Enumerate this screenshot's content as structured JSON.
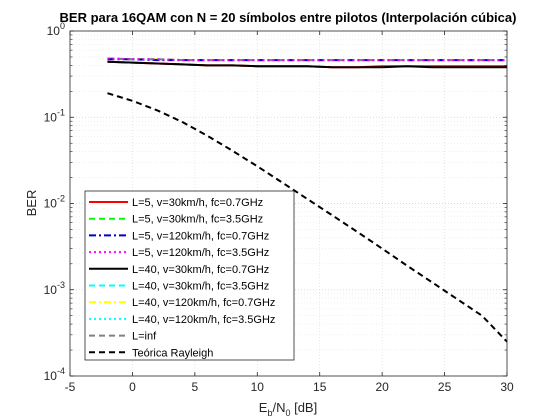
{
  "chart_data": {
    "type": "line",
    "title": "BER para 16QAM con N = 20 símbolos entre pilotos (Interpolación cúbica)",
    "xlabel": "E_b/N_0 [dB]",
    "xlabel_parts": {
      "base": "E",
      "sub1": "b",
      "mid": "/N",
      "sub2": "0",
      "tail": " [dB]"
    },
    "ylabel": "BER",
    "xlim": [
      -5,
      30
    ],
    "ylim": [
      0.0001,
      1
    ],
    "yscale": "log",
    "grid": true,
    "legend_position": "bottom-left",
    "x_ticks": [
      -5,
      0,
      5,
      10,
      15,
      20,
      25,
      30
    ],
    "x_tick_labels": [
      "-5",
      "0",
      "5",
      "10",
      "15",
      "20",
      "25",
      "30"
    ],
    "y_ticks": [
      0.0001,
      0.001,
      0.01,
      0.1,
      1
    ],
    "y_tick_labels": [
      {
        "base": "10",
        "exp": "-4"
      },
      {
        "base": "10",
        "exp": "-3"
      },
      {
        "base": "10",
        "exp": "-2"
      },
      {
        "base": "10",
        "exp": "-1"
      },
      {
        "base": "10",
        "exp": "0"
      }
    ],
    "x": [
      -2,
      0,
      2,
      4,
      6,
      8,
      10,
      12,
      14,
      16,
      18,
      20,
      22,
      24,
      26,
      28,
      30
    ],
    "series": [
      {
        "name": "L=5, v=30km/h, fc=0.7GHz",
        "color": "#ff0000",
        "dash": "solid",
        "values": [
          0.44,
          0.43,
          0.42,
          0.41,
          0.4,
          0.4,
          0.39,
          0.39,
          0.39,
          0.38,
          0.38,
          0.39,
          0.39,
          0.39,
          0.39,
          0.39,
          0.39
        ]
      },
      {
        "name": "L=5, v=30km/h, fc=3.5GHz",
        "color": "#00ff00",
        "dash": "dashed",
        "values": [
          0.48,
          0.47,
          0.47,
          0.46,
          0.46,
          0.46,
          0.46,
          0.46,
          0.46,
          0.46,
          0.46,
          0.46,
          0.46,
          0.46,
          0.46,
          0.46,
          0.46
        ]
      },
      {
        "name": "L=5, v=120km/h, fc=0.7GHz",
        "color": "#0000cc",
        "dash": "dashdot",
        "values": [
          0.47,
          0.47,
          0.46,
          0.46,
          0.46,
          0.46,
          0.46,
          0.46,
          0.46,
          0.46,
          0.46,
          0.46,
          0.46,
          0.46,
          0.46,
          0.46,
          0.46
        ]
      },
      {
        "name": "L=5, v=120km/h, fc=3.5GHz",
        "color": "#ff00ff",
        "dash": "dotted",
        "values": [
          0.48,
          0.47,
          0.47,
          0.46,
          0.46,
          0.46,
          0.46,
          0.46,
          0.46,
          0.46,
          0.46,
          0.46,
          0.46,
          0.46,
          0.46,
          0.46,
          0.46
        ]
      },
      {
        "name": "L=40, v=30km/h, fc=0.7GHz",
        "color": "#000000",
        "dash": "solid",
        "values": [
          0.44,
          0.43,
          0.42,
          0.41,
          0.4,
          0.4,
          0.39,
          0.39,
          0.39,
          0.38,
          0.38,
          0.38,
          0.39,
          0.38,
          0.38,
          0.38,
          0.38
        ]
      },
      {
        "name": "L=40, v=30km/h, fc=3.5GHz",
        "color": "#00ffff",
        "dash": "dashed",
        "values": [
          0.48,
          0.47,
          0.47,
          0.46,
          0.46,
          0.46,
          0.46,
          0.46,
          0.46,
          0.46,
          0.46,
          0.46,
          0.46,
          0.46,
          0.46,
          0.46,
          0.46
        ]
      },
      {
        "name": "L=40, v=120km/h, fc=0.7GHz",
        "color": "#ffff00",
        "dash": "dashdot",
        "values": [
          0.48,
          0.47,
          0.47,
          0.46,
          0.46,
          0.46,
          0.46,
          0.46,
          0.46,
          0.46,
          0.46,
          0.46,
          0.46,
          0.46,
          0.46,
          0.46,
          0.46
        ]
      },
      {
        "name": "L=40, v=120km/h, fc=3.5GHz",
        "color": "#00ffff",
        "dash": "dotted",
        "values": [
          0.48,
          0.47,
          0.47,
          0.46,
          0.46,
          0.46,
          0.46,
          0.46,
          0.46,
          0.46,
          0.46,
          0.46,
          0.46,
          0.46,
          0.46,
          0.46,
          0.46
        ]
      },
      {
        "name": "L=inf",
        "color": "#808080",
        "dash": "dashed",
        "values": [
          0.48,
          0.47,
          0.47,
          0.46,
          0.46,
          0.46,
          0.46,
          0.46,
          0.46,
          0.46,
          0.46,
          0.46,
          0.46,
          0.46,
          0.46,
          0.46,
          0.46
        ]
      },
      {
        "name": "Teórica Rayleigh",
        "color": "#000000",
        "dash": "dashed",
        "values": [
          0.19,
          0.155,
          0.12,
          0.088,
          0.061,
          0.041,
          0.027,
          0.0175,
          0.0113,
          0.0073,
          0.0047,
          0.003,
          0.0019,
          0.00122,
          0.00078,
          0.0005,
          0.00025
        ]
      }
    ]
  }
}
